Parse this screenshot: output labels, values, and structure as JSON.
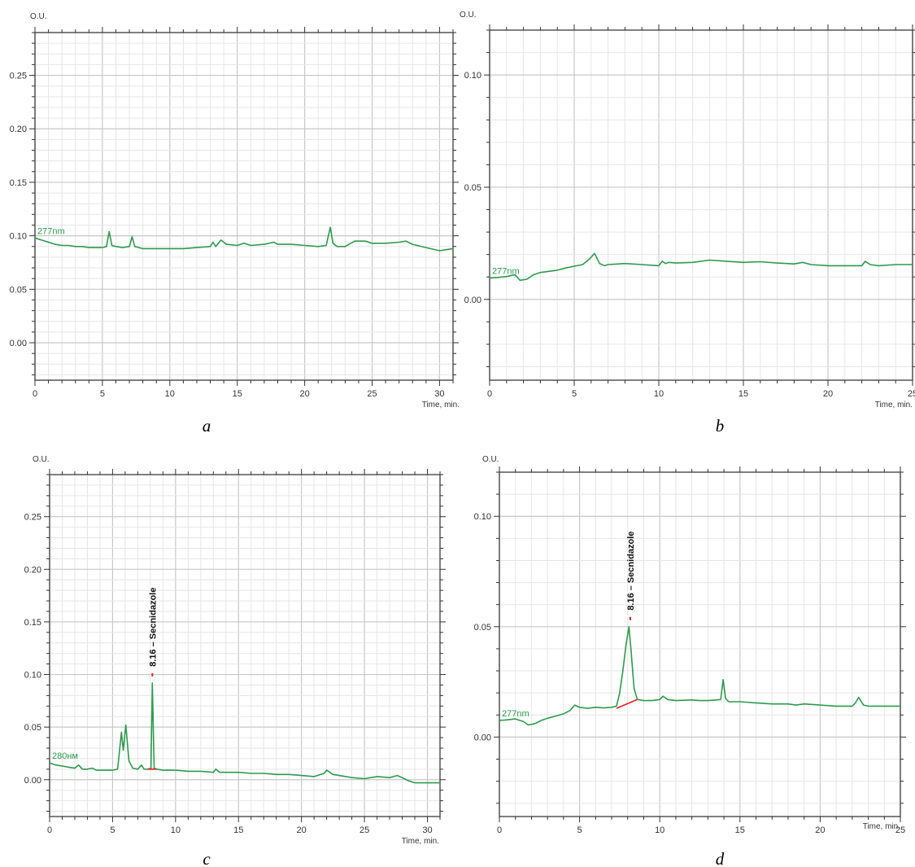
{
  "chart_data": [
    {
      "panel": "a",
      "type": "line",
      "ylabel": "O.U.",
      "xlabel": "Time, min.",
      "xlim": [
        0,
        31
      ],
      "ylim": [
        -0.035,
        0.29
      ],
      "xticks": [
        0,
        5,
        10,
        15,
        20,
        25,
        30
      ],
      "yticks": [
        0.0,
        0.05,
        0.1,
        0.15,
        0.2,
        0.25
      ],
      "grid": true,
      "series": [
        {
          "name": "277nm",
          "color": "#2e9a4e",
          "x": [
            0,
            0.5,
            1,
            1.5,
            2,
            2.5,
            3,
            3.5,
            4,
            4.5,
            5,
            5.3,
            5.5,
            5.7,
            6,
            6.5,
            7,
            7.2,
            7.4,
            7.7,
            8,
            9,
            10,
            11,
            12,
            13,
            13.2,
            13.4,
            13.8,
            14.2,
            15,
            15.5,
            16,
            17,
            17.7,
            18,
            19,
            20,
            21,
            21.6,
            21.9,
            22.1,
            22.4,
            23,
            23.7,
            24.5,
            25,
            26,
            27,
            27.5,
            28,
            29,
            30,
            30.5,
            31
          ],
          "values": [
            0.098,
            0.096,
            0.094,
            0.092,
            0.091,
            0.091,
            0.09,
            0.09,
            0.089,
            0.089,
            0.089,
            0.09,
            0.104,
            0.091,
            0.09,
            0.089,
            0.09,
            0.099,
            0.09,
            0.089,
            0.088,
            0.088,
            0.088,
            0.088,
            0.089,
            0.09,
            0.094,
            0.09,
            0.096,
            0.092,
            0.091,
            0.093,
            0.091,
            0.092,
            0.094,
            0.092,
            0.092,
            0.091,
            0.09,
            0.091,
            0.108,
            0.093,
            0.09,
            0.09,
            0.095,
            0.095,
            0.093,
            0.093,
            0.094,
            0.095,
            0.092,
            0.089,
            0.086,
            0.087,
            0.088
          ]
        }
      ]
    },
    {
      "panel": "b",
      "type": "line",
      "ylabel": "O.U.",
      "xlabel": "Time, min.",
      "xlim": [
        0,
        25
      ],
      "ylim": [
        -0.036,
        0.12
      ],
      "xticks": [
        0,
        5,
        10,
        15,
        20,
        25
      ],
      "yticks": [
        0.0,
        0.05,
        0.1
      ],
      "grid": true,
      "series": [
        {
          "name": "277nm",
          "color": "#2e9a4e",
          "x": [
            0,
            0.5,
            1,
            1.5,
            1.8,
            2.2,
            2.6,
            3,
            3.5,
            4,
            4.5,
            5,
            5.5,
            5.9,
            6.2,
            6.5,
            6.8,
            7,
            8,
            9,
            10,
            10.2,
            10.4,
            10.6,
            11,
            12,
            13,
            14,
            15,
            16,
            17,
            18,
            18.5,
            19,
            20,
            21,
            22,
            22.2,
            22.5,
            23,
            24,
            25
          ],
          "values": [
            0.0095,
            0.0098,
            0.0102,
            0.011,
            0.0085,
            0.009,
            0.011,
            0.012,
            0.0125,
            0.013,
            0.014,
            0.0148,
            0.0155,
            0.018,
            0.0205,
            0.016,
            0.015,
            0.0155,
            0.016,
            0.0155,
            0.015,
            0.017,
            0.016,
            0.0165,
            0.0162,
            0.0165,
            0.0175,
            0.017,
            0.0165,
            0.0168,
            0.0162,
            0.0158,
            0.0165,
            0.0155,
            0.015,
            0.015,
            0.015,
            0.017,
            0.0155,
            0.015,
            0.0155,
            0.0155
          ]
        }
      ]
    },
    {
      "panel": "c",
      "type": "line",
      "ylabel": "O.U.",
      "xlabel": "Time, min.",
      "xlim": [
        0,
        31
      ],
      "ylim": [
        -0.035,
        0.29
      ],
      "xticks": [
        0,
        5,
        10,
        15,
        20,
        25,
        30
      ],
      "yticks": [
        0.0,
        0.05,
        0.1,
        0.15,
        0.2,
        0.25
      ],
      "grid": true,
      "series": [
        {
          "name": "280нм",
          "color": "#2e9a4e",
          "x": [
            0,
            0.5,
            1,
            1.5,
            2,
            2.3,
            2.6,
            3,
            3.4,
            3.7,
            4,
            4.5,
            5,
            5.4,
            5.7,
            5.85,
            6.05,
            6.3,
            6.6,
            7,
            7.3,
            7.5,
            7.8,
            8.05,
            8.16,
            8.3,
            8.5,
            9,
            10,
            11,
            12,
            13,
            13.2,
            13.5,
            14,
            15,
            16,
            17,
            18,
            19,
            20,
            21,
            21.8,
            22,
            22.5,
            23,
            24,
            25,
            26,
            27,
            27.6,
            28,
            28.5,
            29,
            30,
            31
          ],
          "values": [
            0.016,
            0.014,
            0.013,
            0.012,
            0.011,
            0.014,
            0.01,
            0.01,
            0.011,
            0.009,
            0.009,
            0.009,
            0.009,
            0.01,
            0.045,
            0.028,
            0.052,
            0.018,
            0.011,
            0.01,
            0.014,
            0.01,
            0.01,
            0.011,
            0.092,
            0.011,
            0.01,
            0.009,
            0.009,
            0.008,
            0.008,
            0.007,
            0.01,
            0.007,
            0.007,
            0.007,
            0.006,
            0.006,
            0.005,
            0.005,
            0.004,
            0.003,
            0.006,
            0.009,
            0.005,
            0.004,
            0.002,
            0.001,
            0.003,
            0.002,
            0.004,
            0.002,
            -0.001,
            -0.003,
            -0.003,
            -0.003
          ]
        }
      ],
      "baseline_marker": {
        "x": [
          7.8,
          8.5
        ],
        "y": [
          0.01,
          0.01
        ],
        "color": "#e02020"
      },
      "annotations": [
        {
          "text": "8.16 – Secnidazole",
          "x": 8.16,
          "y": 0.092
        }
      ]
    },
    {
      "panel": "d",
      "type": "line",
      "ylabel": "O.U.",
      "xlabel": "Time, min.",
      "xlim": [
        0,
        25
      ],
      "ylim": [
        -0.036,
        0.12
      ],
      "xticks": [
        0,
        5,
        10,
        15,
        20,
        25
      ],
      "yticks": [
        0.0,
        0.05,
        0.1
      ],
      "grid": true,
      "series": [
        {
          "name": "277nm",
          "color": "#2e9a4e",
          "x": [
            0,
            0.5,
            1,
            1.5,
            1.8,
            2.2,
            2.6,
            3,
            3.5,
            4,
            4.4,
            4.7,
            5,
            5.5,
            6,
            6.5,
            7,
            7.3,
            7.5,
            7.7,
            7.9,
            8.08,
            8.2,
            8.4,
            8.6,
            9,
            9.5,
            10,
            10.2,
            10.5,
            11,
            12,
            12.5,
            13,
            13.5,
            13.8,
            13.95,
            14.1,
            14.3,
            15,
            16,
            17,
            18,
            18.5,
            19,
            20,
            21,
            22,
            22.2,
            22.4,
            22.7,
            23,
            24,
            25
          ],
          "values": [
            0.0075,
            0.0078,
            0.0082,
            0.007,
            0.0055,
            0.006,
            0.0075,
            0.0085,
            0.0095,
            0.0105,
            0.012,
            0.0145,
            0.0135,
            0.013,
            0.0135,
            0.0132,
            0.0135,
            0.014,
            0.02,
            0.03,
            0.042,
            0.05,
            0.04,
            0.022,
            0.017,
            0.0165,
            0.0165,
            0.017,
            0.0185,
            0.017,
            0.0165,
            0.0168,
            0.0165,
            0.0165,
            0.0168,
            0.017,
            0.026,
            0.0175,
            0.016,
            0.016,
            0.0155,
            0.015,
            0.015,
            0.0145,
            0.015,
            0.0145,
            0.014,
            0.014,
            0.0155,
            0.018,
            0.0145,
            0.014,
            0.014,
            0.014
          ]
        }
      ],
      "baseline_marker": {
        "x": [
          7.3,
          8.6
        ],
        "y": [
          0.013,
          0.017
        ],
        "color": "#e02020"
      },
      "annotations": [
        {
          "text": "8.16 – Secnidazole",
          "x": 8.16,
          "y": 0.05
        }
      ]
    }
  ]
}
